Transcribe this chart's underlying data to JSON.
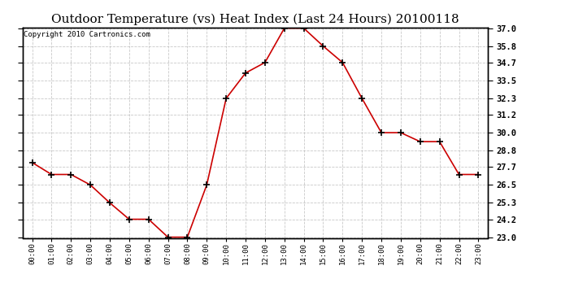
{
  "title": "Outdoor Temperature (vs) Heat Index (Last 24 Hours) 20100118",
  "copyright": "Copyright 2010 Cartronics.com",
  "x_labels": [
    "00:00",
    "01:00",
    "02:00",
    "03:00",
    "04:00",
    "05:00",
    "06:00",
    "07:00",
    "08:00",
    "09:00",
    "10:00",
    "11:00",
    "12:00",
    "13:00",
    "14:00",
    "15:00",
    "16:00",
    "17:00",
    "18:00",
    "19:00",
    "20:00",
    "21:00",
    "22:00",
    "23:00"
  ],
  "y_values": [
    28.0,
    27.2,
    27.2,
    26.5,
    25.3,
    24.2,
    24.2,
    23.0,
    23.0,
    26.5,
    32.3,
    34.0,
    34.7,
    37.0,
    37.0,
    35.8,
    34.7,
    32.3,
    30.0,
    30.0,
    29.4,
    29.4,
    27.2,
    27.2
  ],
  "y_min": 23.0,
  "y_max": 37.0,
  "y_ticks": [
    23.0,
    24.2,
    25.3,
    26.5,
    27.7,
    28.8,
    30.0,
    31.2,
    32.3,
    33.5,
    34.7,
    35.8,
    37.0
  ],
  "line_color": "#cc0000",
  "marker_color": "#000000",
  "background_color": "#ffffff",
  "grid_color": "#bbbbbb",
  "title_fontsize": 11,
  "copyright_fontsize": 6.5
}
